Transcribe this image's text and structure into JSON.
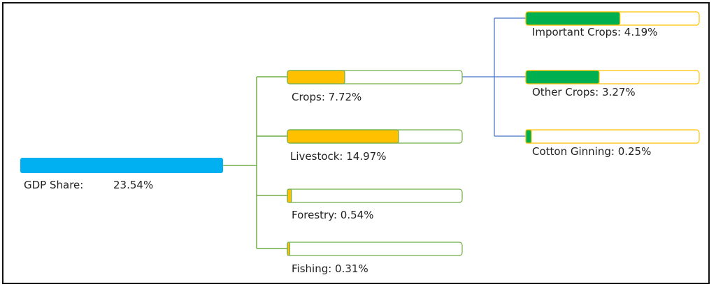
{
  "root": {
    "label": "GDP Share:",
    "value": "23.54%",
    "percent": 23.54,
    "color": "#00b0f0"
  },
  "level1": [
    {
      "id": "crops",
      "label": "Crops: 7.72%",
      "percent": 7.72,
      "fill": "#ffc000",
      "border": "#70ad47"
    },
    {
      "id": "livestock",
      "label": "Livestock: 14.97%",
      "percent": 14.97,
      "fill": "#ffc000",
      "border": "#70ad47"
    },
    {
      "id": "forestry",
      "label": "Forestry: 0.54%",
      "percent": 0.54,
      "fill": "#ffc000",
      "border": "#70ad47"
    },
    {
      "id": "fishing",
      "label": "Fishing: 0.31%",
      "percent": 0.31,
      "fill": "#ffc000",
      "border": "#70ad47"
    }
  ],
  "level2": [
    {
      "id": "important-crops",
      "label": "Important Crops: 4.19%",
      "percent": 4.19,
      "fill": "#00b050",
      "border": "#ffc000"
    },
    {
      "id": "other-crops",
      "label": "Other Crops: 3.27%",
      "percent": 3.27,
      "fill": "#00b050",
      "border": "#ffc000"
    },
    {
      "id": "cotton-ginning",
      "label": "Cotton Ginning: 0.25%",
      "percent": 0.25,
      "fill": "#00b050",
      "border": "#ffc000"
    }
  ],
  "colors": {
    "connector_green": "#70ad47",
    "connector_blue": "#4472c4"
  }
}
